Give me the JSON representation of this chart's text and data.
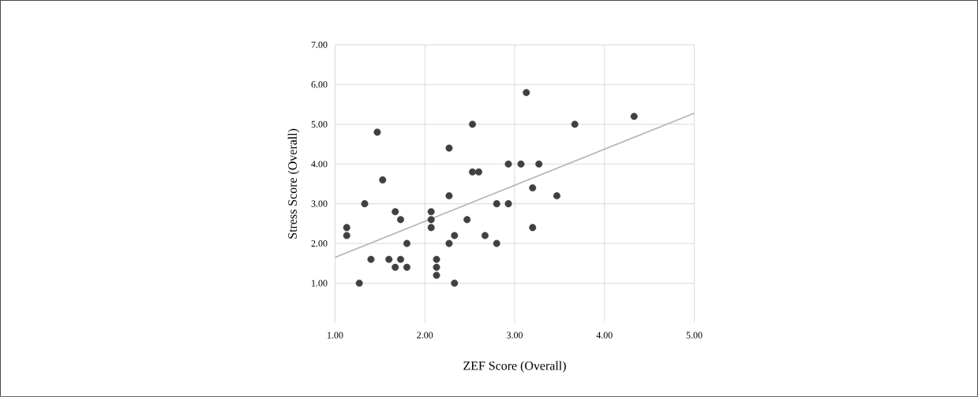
{
  "chart_data": {
    "type": "scatter",
    "xlabel": "ZEF Score (Overall)",
    "ylabel": "Stress Score (Overall)",
    "xlim": [
      1,
      5
    ],
    "ylim": [
      0,
      7
    ],
    "xticks": [
      {
        "value": 1,
        "label": "1.00"
      },
      {
        "value": 2,
        "label": "2.00"
      },
      {
        "value": 3,
        "label": "3.00"
      },
      {
        "value": 4,
        "label": "4.00"
      },
      {
        "value": 5,
        "label": "5.00"
      }
    ],
    "yticks": [
      {
        "value": 1,
        "label": "1.00"
      },
      {
        "value": 2,
        "label": "2.00"
      },
      {
        "value": 3,
        "label": "3.00"
      },
      {
        "value": 4,
        "label": "4.00"
      },
      {
        "value": 5,
        "label": "5.00"
      },
      {
        "value": 6,
        "label": "6.00"
      },
      {
        "value": 7,
        "label": "7.00"
      }
    ],
    "grid": true,
    "marker": "circle",
    "series": [
      {
        "color": "#404040",
        "x": [
          1.13,
          1.13,
          1.27,
          1.33,
          1.4,
          1.47,
          1.53,
          1.6,
          1.67,
          1.67,
          1.73,
          1.73,
          1.8,
          1.8,
          2.07,
          2.07,
          2.07,
          2.13,
          2.13,
          2.13,
          2.27,
          2.27,
          2.27,
          2.33,
          2.33,
          2.47,
          2.53,
          2.53,
          2.6,
          2.67,
          2.8,
          2.8,
          2.93,
          2.93,
          3.07,
          3.13,
          3.2,
          3.2,
          3.27,
          3.47,
          3.67,
          4.33
        ],
        "values": [
          2.4,
          2.2,
          1.0,
          3.0,
          1.6,
          4.8,
          3.6,
          1.6,
          2.8,
          1.4,
          2.6,
          1.6,
          2.0,
          1.4,
          2.8,
          2.6,
          2.4,
          1.6,
          1.4,
          1.2,
          4.4,
          3.2,
          2.0,
          2.2,
          1.0,
          2.6,
          5.0,
          3.8,
          3.8,
          2.2,
          3.0,
          2.0,
          4.0,
          3.0,
          4.0,
          5.8,
          3.4,
          2.4,
          4.0,
          3.2,
          5.0,
          5.2
        ]
      },
      {
        "type": "line",
        "color": "#b3b3b3",
        "marker": "none",
        "x": [
          1,
          5
        ],
        "values": [
          1.65,
          5.28
        ]
      }
    ]
  }
}
